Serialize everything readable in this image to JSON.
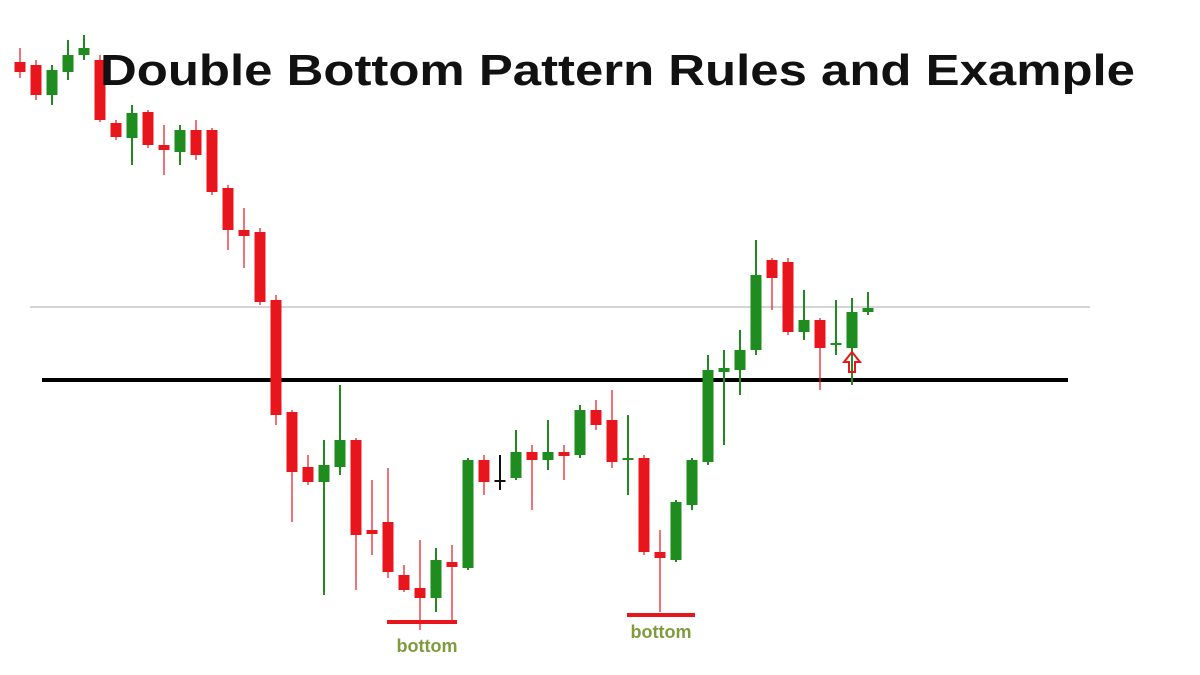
{
  "chart_data": {
    "type": "candlestick",
    "title": "Double Bottom Pattern Rules and Example",
    "up_color": "#1e8c1e",
    "down_color": "#e8161c",
    "doji_color": "#111111",
    "ylim": [
      0,
      675
    ],
    "open": [
      613,
      610,
      580,
      603,
      620,
      615,
      552,
      537,
      563,
      530,
      523,
      545,
      545,
      487,
      445,
      443,
      375,
      263,
      208,
      193,
      208,
      235,
      145,
      153,
      100,
      87,
      77,
      113,
      107,
      215,
      195,
      197,
      223,
      215,
      223,
      220,
      265,
      255,
      215,
      217,
      123,
      115,
      170,
      213,
      303,
      305,
      325,
      415,
      413,
      343,
      355,
      330,
      327,
      363
    ],
    "high": [
      627,
      615,
      610,
      635,
      640,
      620,
      555,
      570,
      565,
      550,
      550,
      555,
      547,
      490,
      467,
      447,
      380,
      265,
      220,
      235,
      290,
      237,
      195,
      207,
      110,
      135,
      127,
      130,
      217,
      220,
      220,
      245,
      230,
      255,
      230,
      270,
      275,
      285,
      260,
      220,
      145,
      175,
      217,
      320,
      325,
      345,
      435,
      417,
      417,
      385,
      357,
      375,
      377,
      383
    ],
    "low": [
      597,
      575,
      570,
      595,
      615,
      553,
      535,
      510,
      527,
      500,
      510,
      515,
      480,
      425,
      407,
      370,
      250,
      153,
      190,
      80,
      200,
      85,
      120,
      97,
      83,
      45,
      63,
      55,
      105,
      180,
      185,
      195,
      165,
      205,
      195,
      217,
      245,
      207,
      180,
      120,
      63,
      113,
      165,
      210,
      230,
      280,
      320,
      365,
      340,
      335,
      285,
      320,
      290,
      360
    ],
    "close": [
      603,
      580,
      605,
      620,
      627,
      555,
      538,
      562,
      530,
      525,
      545,
      520,
      483,
      445,
      439,
      373,
      260,
      203,
      193,
      210,
      235,
      140,
      141,
      103,
      85,
      77,
      115,
      108,
      215,
      193,
      195,
      223,
      215,
      223,
      219,
      265,
      250,
      213,
      217,
      123,
      117,
      173,
      215,
      305,
      307,
      325,
      400,
      397,
      343,
      355,
      327,
      332,
      363,
      367
    ],
    "hlines": [
      {
        "value": 368,
        "color": "#aaaaaa",
        "width": 1
      },
      {
        "value": 295,
        "color": "#000000",
        "width": 4
      }
    ],
    "annotations": [
      {
        "text": "bottom",
        "value": 53,
        "color": "#e8161c"
      },
      {
        "text": "bottom",
        "value": 60,
        "color": "#e8161c"
      }
    ]
  }
}
